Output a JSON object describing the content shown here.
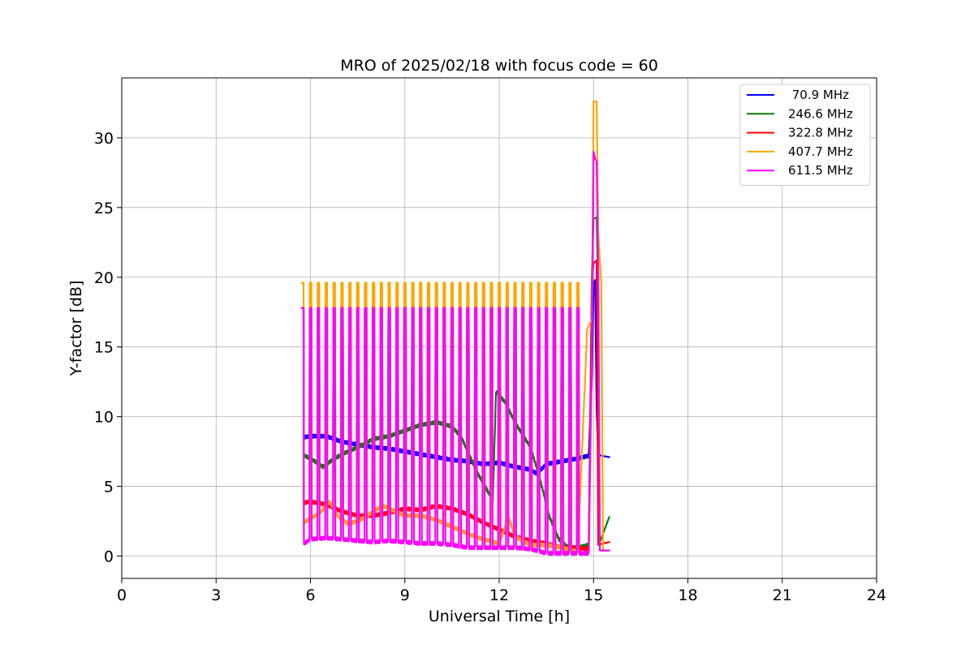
{
  "chart_data": {
    "type": "line",
    "title": "MRO of 2025/02/18 with focus code = 60",
    "xlabel": "Universal Time [h]",
    "ylabel": "Y-factor [dB]",
    "xlim": [
      0,
      24
    ],
    "ylim": [
      -1.6,
      34.3
    ],
    "xticks": [
      0,
      3,
      6,
      9,
      12,
      15,
      18,
      21,
      24
    ],
    "yticks": [
      0,
      5,
      10,
      15,
      20,
      25,
      30
    ],
    "grid": true,
    "legend_position": "top-right",
    "calibration_spikes": {
      "start_hour": 5.72,
      "end_hour": 14.6,
      "period_hours": 0.25,
      "width_hours": 0.06
    },
    "series": [
      {
        "name": " 70.9 MHz",
        "color": "#0000ff",
        "spike_peak": 17.8,
        "baseline": [
          [
            5.72,
            8.5
          ],
          [
            6.0,
            8.6
          ],
          [
            6.5,
            8.6
          ],
          [
            7.0,
            8.2
          ],
          [
            7.5,
            8.0
          ],
          [
            8.0,
            7.8
          ],
          [
            8.5,
            7.7
          ],
          [
            9.0,
            7.5
          ],
          [
            9.5,
            7.3
          ],
          [
            10.0,
            7.1
          ],
          [
            10.5,
            6.9
          ],
          [
            11.0,
            6.8
          ],
          [
            11.5,
            6.6
          ],
          [
            12.0,
            6.7
          ],
          [
            12.5,
            6.4
          ],
          [
            13.0,
            6.2
          ],
          [
            13.2,
            5.9
          ],
          [
            13.5,
            6.6
          ],
          [
            14.0,
            6.8
          ],
          [
            14.5,
            7.0
          ],
          [
            14.85,
            7.2
          ]
        ],
        "tail": [
          [
            14.95,
            13.0
          ],
          [
            15.0,
            19.5
          ],
          [
            15.05,
            19.8
          ],
          [
            15.1,
            10.5
          ],
          [
            15.15,
            7.3
          ],
          [
            15.25,
            7.2
          ],
          [
            15.5,
            7.1
          ]
        ]
      },
      {
        "name": "246.6 MHz",
        "color": "#008000",
        "spike_peak": 17.8,
        "baseline": [
          [
            5.72,
            7.3
          ],
          [
            6.0,
            7.0
          ],
          [
            6.4,
            6.4
          ],
          [
            6.7,
            6.9
          ],
          [
            7.0,
            7.3
          ],
          [
            7.5,
            7.8
          ],
          [
            8.0,
            8.4
          ],
          [
            8.5,
            8.6
          ],
          [
            9.0,
            9.0
          ],
          [
            9.5,
            9.4
          ],
          [
            10.0,
            9.6
          ],
          [
            10.5,
            9.3
          ],
          [
            10.8,
            8.5
          ],
          [
            11.0,
            7.5
          ],
          [
            11.3,
            6.0
          ],
          [
            11.6,
            4.8
          ],
          [
            11.8,
            4.0
          ],
          [
            11.9,
            11.8
          ],
          [
            12.2,
            11.0
          ],
          [
            12.5,
            9.6
          ],
          [
            12.8,
            8.5
          ],
          [
            13.0,
            7.8
          ],
          [
            13.3,
            5.5
          ],
          [
            13.6,
            2.8
          ],
          [
            13.9,
            1.2
          ],
          [
            14.2,
            0.6
          ],
          [
            14.5,
            0.6
          ],
          [
            14.85,
            0.8
          ]
        ],
        "tail": [
          [
            14.95,
            20.5
          ],
          [
            15.0,
            24.2
          ],
          [
            15.1,
            24.3
          ],
          [
            15.15,
            18.5
          ],
          [
            15.2,
            1.0
          ],
          [
            15.3,
            1.6
          ],
          [
            15.5,
            2.8
          ]
        ]
      },
      {
        "name": "322.8 MHz",
        "color": "#ff0000",
        "spike_peak": 17.8,
        "baseline": [
          [
            5.72,
            3.8
          ],
          [
            6.0,
            3.9
          ],
          [
            6.5,
            3.7
          ],
          [
            7.0,
            3.2
          ],
          [
            7.5,
            2.9
          ],
          [
            8.0,
            2.9
          ],
          [
            8.5,
            3.1
          ],
          [
            9.0,
            3.4
          ],
          [
            9.5,
            3.3
          ],
          [
            10.0,
            3.6
          ],
          [
            10.5,
            3.4
          ],
          [
            11.0,
            3.0
          ],
          [
            11.5,
            2.4
          ],
          [
            12.0,
            1.9
          ],
          [
            12.5,
            1.4
          ],
          [
            13.0,
            1.1
          ],
          [
            13.5,
            0.9
          ],
          [
            14.0,
            0.6
          ],
          [
            14.5,
            0.6
          ],
          [
            14.85,
            0.5
          ]
        ],
        "tail": [
          [
            14.95,
            20.0
          ],
          [
            15.0,
            21.0
          ],
          [
            15.1,
            21.2
          ],
          [
            15.15,
            0.8
          ],
          [
            15.3,
            0.9
          ],
          [
            15.5,
            1.0
          ]
        ]
      },
      {
        "name": "407.7 MHz",
        "color": "#ffa500",
        "spike_peak": 19.6,
        "baseline": [
          [
            5.72,
            2.3
          ],
          [
            6.0,
            2.7
          ],
          [
            6.3,
            3.1
          ],
          [
            6.6,
            3.9
          ],
          [
            6.9,
            2.8
          ],
          [
            7.2,
            2.3
          ],
          [
            7.6,
            2.6
          ],
          [
            8.0,
            3.2
          ],
          [
            8.3,
            3.6
          ],
          [
            8.6,
            3.3
          ],
          [
            9.0,
            2.9
          ],
          [
            9.5,
            2.9
          ],
          [
            10.0,
            2.6
          ],
          [
            10.5,
            2.1
          ],
          [
            11.0,
            1.6
          ],
          [
            11.5,
            1.2
          ],
          [
            12.0,
            0.9
          ],
          [
            12.3,
            2.8
          ],
          [
            12.5,
            1.4
          ],
          [
            13.0,
            0.8
          ],
          [
            13.5,
            0.8
          ],
          [
            14.0,
            0.6
          ],
          [
            14.5,
            0.3
          ],
          [
            14.8,
            16.4
          ]
        ],
        "tail": [
          [
            14.95,
            17.0
          ],
          [
            15.0,
            32.6
          ],
          [
            15.1,
            32.6
          ],
          [
            15.15,
            23.0
          ],
          [
            15.25,
            19.5
          ],
          [
            15.3,
            0.4
          ],
          [
            15.5,
            0.4
          ]
        ]
      },
      {
        "name": "611.5 MHz",
        "color": "#ff00ff",
        "spike_peak": 17.8,
        "baseline": [
          [
            5.72,
            0.8
          ],
          [
            6.0,
            1.2
          ],
          [
            6.5,
            1.3
          ],
          [
            7.0,
            1.2
          ],
          [
            7.5,
            1.1
          ],
          [
            8.0,
            1.0
          ],
          [
            8.5,
            1.1
          ],
          [
            9.0,
            1.0
          ],
          [
            9.5,
            0.9
          ],
          [
            10.0,
            0.9
          ],
          [
            10.5,
            0.8
          ],
          [
            11.0,
            0.6
          ],
          [
            11.5,
            0.6
          ],
          [
            12.0,
            0.6
          ],
          [
            12.5,
            0.6
          ],
          [
            13.0,
            0.5
          ],
          [
            13.5,
            0.2
          ],
          [
            14.0,
            0.2
          ],
          [
            14.5,
            0.2
          ],
          [
            14.85,
            0.2
          ]
        ],
        "tail": [
          [
            14.95,
            15.0
          ],
          [
            15.0,
            29.0
          ],
          [
            15.05,
            28.5
          ],
          [
            15.1,
            28.3
          ],
          [
            15.15,
            20.0
          ],
          [
            15.2,
            0.4
          ],
          [
            15.5,
            0.4
          ]
        ]
      }
    ]
  }
}
